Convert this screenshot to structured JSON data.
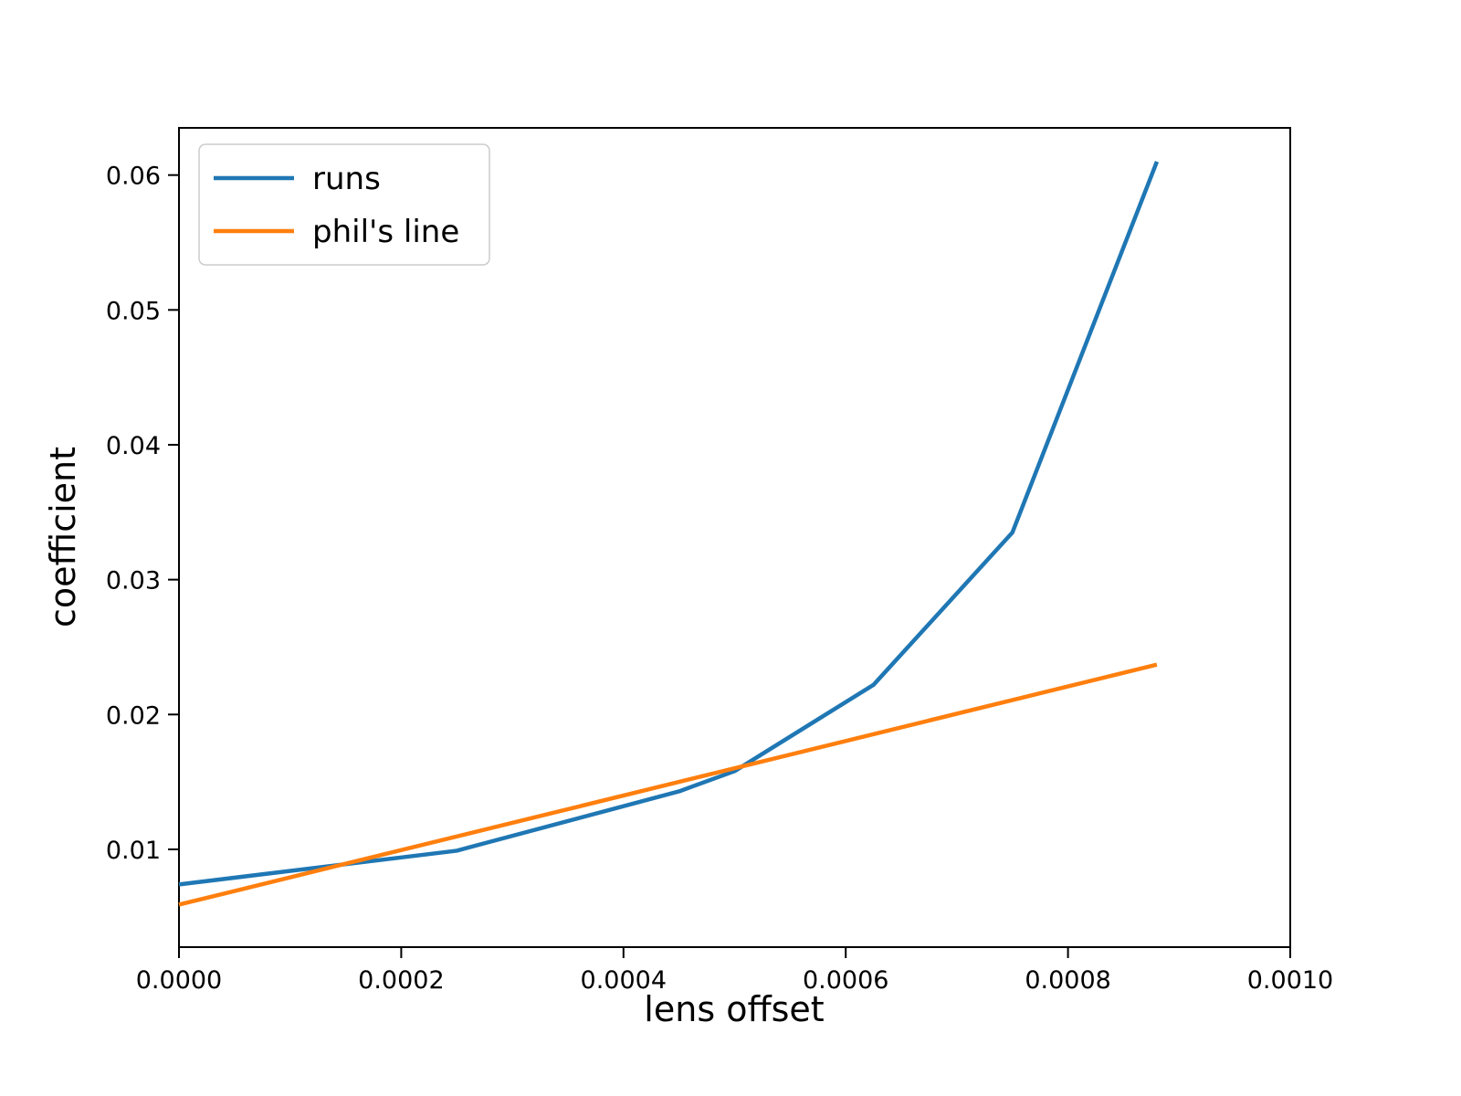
{
  "figure": {
    "background": "#ffffff"
  },
  "chart_data": {
    "type": "line",
    "title": "",
    "xlabel": "lens offset",
    "ylabel": "coefficient",
    "xlim": [
      0.0,
      0.001
    ],
    "ylim": [
      0.00275,
      0.0635
    ],
    "grid": false,
    "legend_position": "upper left",
    "x_ticks": [
      0.0,
      0.0002,
      0.0004,
      0.0006,
      0.0008,
      0.001
    ],
    "x_tick_labels": [
      "0.0000",
      "0.0002",
      "0.0004",
      "0.0006",
      "0.0008",
      "0.0010"
    ],
    "y_ticks": [
      0.01,
      0.02,
      0.03,
      0.04,
      0.05,
      0.06
    ],
    "y_tick_labels": [
      "0.01",
      "0.02",
      "0.03",
      "0.04",
      "0.05",
      "0.06"
    ],
    "series": [
      {
        "name": "runs",
        "color": "#1f77b4",
        "x": [
          0.0,
          0.0002,
          0.00025,
          0.00045,
          0.0005,
          0.000625,
          0.00075,
          0.00088
        ],
        "y": [
          0.0074,
          0.0094,
          0.0099,
          0.0143,
          0.0158,
          0.0222,
          0.0335,
          0.061
        ]
      },
      {
        "name": "phil's line",
        "color": "#ff7f0e",
        "x": [
          0.0,
          0.00088
        ],
        "y": [
          0.0059,
          0.0237
        ]
      }
    ]
  }
}
